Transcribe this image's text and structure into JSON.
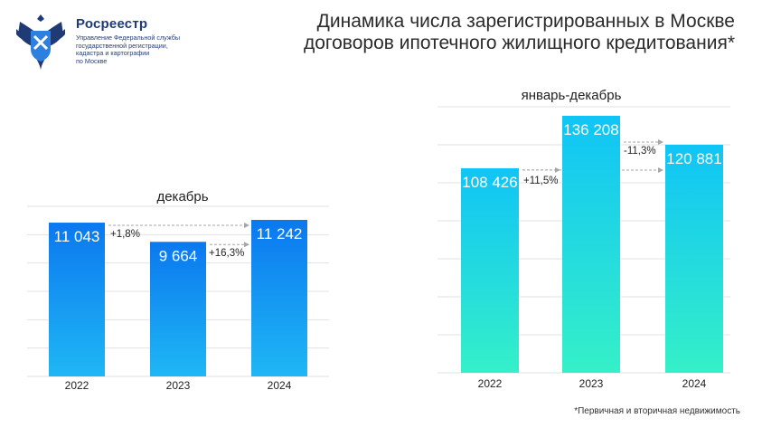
{
  "header": {
    "org_name": "Росреестр",
    "org_sub": "Управление Федеральной службы\nгосударственной регистрации,\nкадастра и картографии\nпо Москве",
    "title": "Динамика числа зарегистрированных в Москве\nдоговоров ипотечного жилищного кредитования*",
    "logo_icon": "eagle-emblem-icon"
  },
  "footnote": "*Первичная и вторичная недвижимость",
  "colors": {
    "bar_top": "#0b78ef",
    "bar_bottom": "#1fb7f5",
    "bar2_top": "#10c4f6",
    "bar2_bottom": "#35f0c8"
  },
  "chart_data": [
    {
      "type": "bar",
      "title": "декабрь",
      "categories": [
        "2022",
        "2023",
        "2024"
      ],
      "values": [
        11043,
        9664,
        11242
      ],
      "value_labels": [
        "11 043",
        "9 664",
        "11 242"
      ],
      "changes": [
        "+1,8%",
        "+16,3%"
      ],
      "grid": true
    },
    {
      "type": "bar",
      "title": "январь-декабрь",
      "categories": [
        "2022",
        "2023",
        "2024"
      ],
      "values": [
        108426,
        136208,
        120881
      ],
      "value_labels": [
        "108 426",
        "136 208",
        "120 881"
      ],
      "changes": [
        "+11,5%",
        "-11,3%"
      ],
      "grid": true
    }
  ]
}
